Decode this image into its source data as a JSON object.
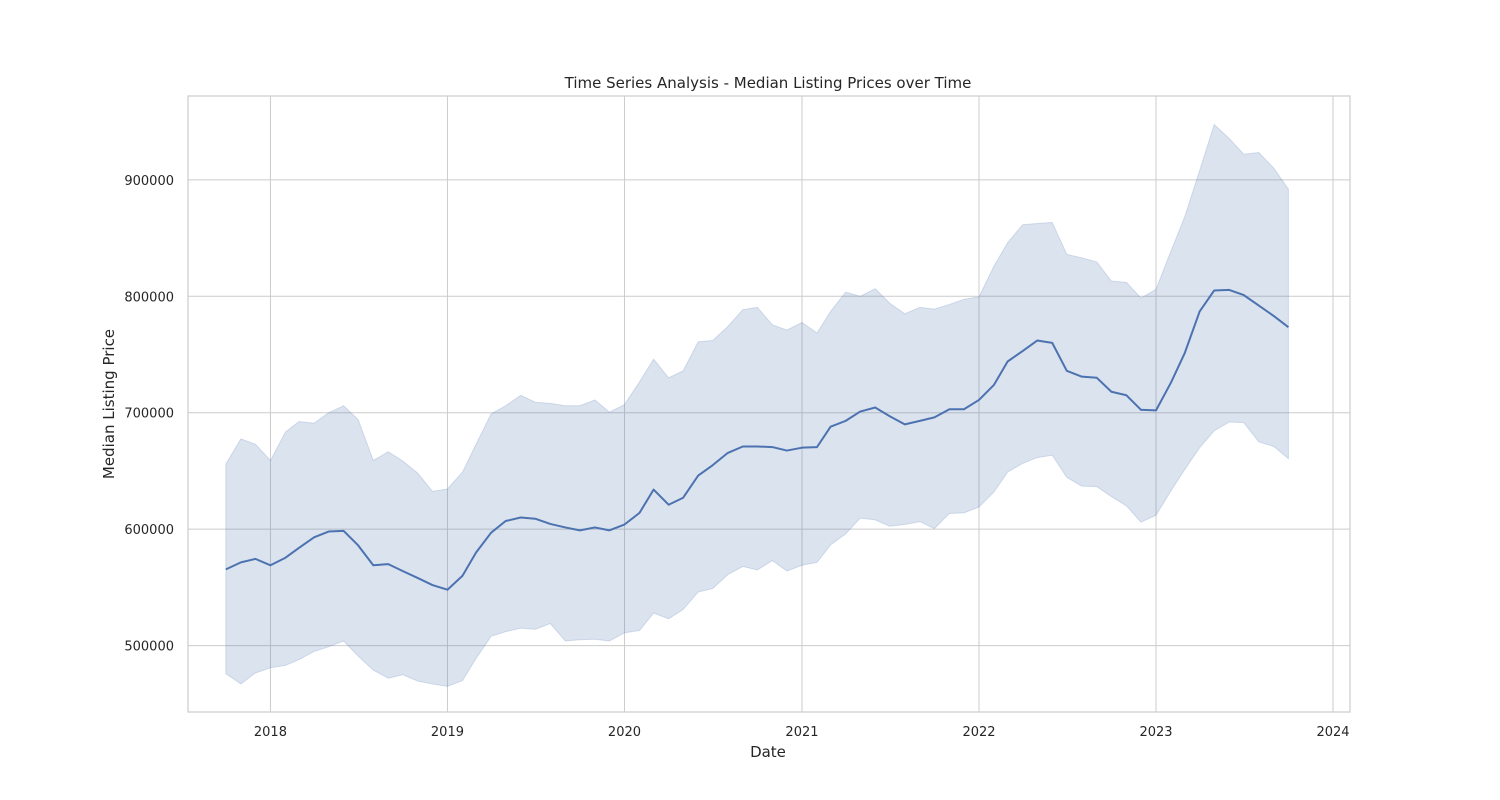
{
  "chart_data": {
    "type": "line",
    "title": "Time Series Analysis - Median Listing Prices over Time",
    "xlabel": "Date",
    "ylabel": "Median Listing Price",
    "xlim": [
      "2017-07-15",
      "2024-02-05"
    ],
    "ylim": [
      443000,
      972000
    ],
    "x_ticks": [
      {
        "date": "2018-01-01",
        "label": "2018"
      },
      {
        "date": "2019-01-01",
        "label": "2019"
      },
      {
        "date": "2020-01-01",
        "label": "2020"
      },
      {
        "date": "2021-01-01",
        "label": "2021"
      },
      {
        "date": "2022-01-01",
        "label": "2022"
      },
      {
        "date": "2023-01-01",
        "label": "2023"
      },
      {
        "date": "2024-01-01",
        "label": "2024"
      }
    ],
    "y_ticks": [
      500000,
      600000,
      700000,
      800000,
      900000
    ],
    "grid": true,
    "colors": {
      "line": "#4c72b0",
      "band": "#4c72b0",
      "grid": "#cccccc",
      "spine": "#cccccc"
    },
    "series": [
      {
        "x": [
          "2017-10-01",
          "2017-11-01",
          "2017-12-01",
          "2018-01-01",
          "2018-02-01",
          "2018-03-01",
          "2018-04-01",
          "2018-05-01",
          "2018-06-01",
          "2018-07-01",
          "2018-08-01",
          "2018-09-01",
          "2018-10-01",
          "2018-11-01",
          "2018-12-01",
          "2019-01-01",
          "2019-02-01",
          "2019-03-01",
          "2019-04-01",
          "2019-05-01",
          "2019-06-01",
          "2019-07-01",
          "2019-08-01",
          "2019-09-01",
          "2019-10-01",
          "2019-11-01",
          "2019-12-01",
          "2020-01-01",
          "2020-02-01",
          "2020-03-01",
          "2020-04-01",
          "2020-05-01",
          "2020-06-01",
          "2020-07-01",
          "2020-08-01",
          "2020-09-01",
          "2020-10-01",
          "2020-11-01",
          "2020-12-01",
          "2021-01-01",
          "2021-02-01",
          "2021-03-01",
          "2021-04-01",
          "2021-05-01",
          "2021-06-01",
          "2021-07-01",
          "2021-08-01",
          "2021-09-01",
          "2021-10-01",
          "2021-11-01",
          "2021-12-01",
          "2022-01-01",
          "2022-02-01",
          "2022-03-01",
          "2022-04-01",
          "2022-05-01",
          "2022-06-01",
          "2022-07-01",
          "2022-08-01",
          "2022-09-01",
          "2022-10-01",
          "2022-11-01",
          "2022-12-01",
          "2023-01-01",
          "2023-02-01",
          "2023-03-01",
          "2023-04-01",
          "2023-05-01",
          "2023-06-01",
          "2023-07-01",
          "2023-08-01",
          "2023-09-01",
          "2023-10-01"
        ],
        "values": [
          565500,
          571500,
          574500,
          569000,
          575500,
          584000,
          593000,
          598000,
          598500,
          586000,
          569000,
          570000,
          564000,
          558000,
          552000,
          548000,
          560000,
          580000,
          597000,
          607000,
          610000,
          609000,
          604500,
          601500,
          599000,
          601500,
          599000,
          604000,
          614000,
          634000,
          621000,
          627000,
          646000,
          655000,
          665500,
          671000,
          671000,
          670500,
          667500,
          670000,
          670500,
          688000,
          693000,
          701000,
          704500,
          697000,
          690000,
          693000,
          696000,
          703000,
          703000,
          711000,
          724000,
          744000,
          753000,
          762000,
          760000,
          736000,
          731000,
          730000,
          718000,
          715000,
          702500,
          702000,
          726000,
          751000,
          787000,
          805000,
          805500,
          801000,
          792000,
          783000,
          773500
        ],
        "lower": [
          476000,
          467000,
          476500,
          481000,
          483000,
          488000,
          495000,
          499000,
          504000,
          491000,
          479000,
          472000,
          475000,
          469500,
          467000,
          465000,
          470000,
          489000,
          508000,
          512000,
          515000,
          514000,
          519000,
          504000,
          505000,
          505500,
          504000,
          511000,
          513000,
          528000,
          523000,
          531000,
          546000,
          549000,
          561000,
          568000,
          565000,
          573000,
          564000,
          569000,
          571500,
          586500,
          596000,
          609500,
          608000,
          602500,
          604000,
          606500,
          600500,
          613500,
          614000,
          619000,
          632000,
          649000,
          656500,
          661500,
          663500,
          644500,
          637000,
          636500,
          628000,
          620000,
          606000,
          612000,
          633000,
          651000,
          670000,
          684500,
          692000,
          691500,
          675000,
          671000,
          660500
        ],
        "upper": [
          656000,
          677500,
          673000,
          659000,
          683500,
          692500,
          691000,
          700000,
          706000,
          694000,
          659000,
          666500,
          658500,
          648000,
          632500,
          634500,
          649000,
          673000,
          699000,
          706000,
          715000,
          709000,
          708000,
          706000,
          706000,
          711000,
          700500,
          707000,
          726500,
          746000,
          730000,
          736000,
          761000,
          762000,
          774000,
          788500,
          790500,
          775500,
          771000,
          777500,
          768500,
          787000,
          803500,
          800000,
          806500,
          794000,
          785000,
          790500,
          789000,
          793000,
          797500,
          799500,
          826000,
          846000,
          861500,
          862500,
          863500,
          836000,
          833000,
          829500,
          813000,
          812000,
          798500,
          806000,
          839000,
          868000,
          908000,
          947500,
          935500,
          922000,
          923500,
          910000,
          892000
        ]
      }
    ]
  }
}
